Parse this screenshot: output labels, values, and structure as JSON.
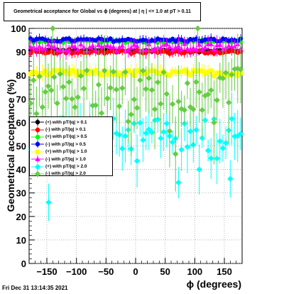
{
  "title": "Geometrical acceptance for Global vs ϕ (degrees) at | η | <= 1.0 at pT > 0.11",
  "timestamp": "Fri Dec 31 13:14:35 2021",
  "chart_data": {
    "type": "scatter",
    "xlabel": "ϕ (degrees)",
    "ylabel": "Geometrical acceptance (%)",
    "xlim": [
      -180,
      180
    ],
    "ylim": [
      0,
      100
    ],
    "xticks": [
      -150,
      -100,
      -50,
      0,
      50,
      100,
      150
    ],
    "xtick_labels": [
      "−150",
      "−100",
      "−50",
      "0",
      "50",
      "100",
      "150"
    ],
    "yticks": [
      0,
      10,
      20,
      30,
      40,
      50,
      60,
      70,
      80,
      90,
      100
    ],
    "grid": true,
    "legend_position": "left",
    "x_bins": {
      "start": -177.5,
      "step": 5,
      "count": 72
    },
    "series": [
      {
        "name": "(+) with pT/|q| > 0.1",
        "color": "#000000",
        "marker": "circle",
        "mean": 90.5,
        "spread": 0.6,
        "err": 1.2
      },
      {
        "name": "(-) with pT/|q| > 0.1",
        "color": "#ff0000",
        "marker": "circle",
        "mean": 90.0,
        "spread": 0.8,
        "err": 1.5
      },
      {
        "name": "(+) with pT/|q| > 0.5",
        "color": "#00ff00",
        "marker": "circle",
        "mean": 94.5,
        "spread": 0.6,
        "err": 1.2
      },
      {
        "name": "(-) with pT/|q| > 0.5",
        "color": "#0000ff",
        "marker": "circle",
        "mean": 95.0,
        "spread": 0.7,
        "err": 1.5
      },
      {
        "name": "(+) with pT/|q| > 1.0",
        "color": "#ffff00",
        "marker": "square",
        "mean": 81.0,
        "spread": 1.2,
        "err": 2.5
      },
      {
        "name": "(-) with pT/|q| > 1.0",
        "color": "#ff00ff",
        "marker": "triangle",
        "mean": 92.0,
        "spread": 1.5,
        "err": 3.0
      },
      {
        "name": "(+) with pT/|q| > 2.0",
        "color": "#00ffff",
        "marker": "diamond",
        "mean": 55.0,
        "spread": 7.0,
        "err": 8.0
      },
      {
        "name": "(-) with pT/|q| > 2.0",
        "color": "#66cc44",
        "marker": "diamond",
        "mean": 74.0,
        "spread": 9.0,
        "err": 12.0
      }
    ],
    "highlighted_points": [
      {
        "series": "(+) with pT/|q| > 2.0",
        "x": -147,
        "y": 26
      },
      {
        "series": "(+) with pT/|q| > 2.0",
        "x": 160,
        "y": 36
      },
      {
        "series": "(-) with pT/|q| > 2.0",
        "x": -140,
        "y": 100
      },
      {
        "series": "(-) with pT/|q| > 2.0",
        "x": 105,
        "y": 100
      }
    ]
  }
}
